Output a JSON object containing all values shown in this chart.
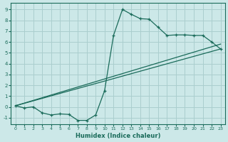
{
  "xlabel": "Humidex (Indice chaleur)",
  "bg_color": "#cce8e8",
  "grid_color": "#aacece",
  "line_color": "#1a6b5a",
  "xlim": [
    -0.5,
    23.5
  ],
  "ylim": [
    -1.6,
    9.6
  ],
  "xticks": [
    0,
    1,
    2,
    3,
    4,
    5,
    6,
    7,
    8,
    9,
    10,
    11,
    12,
    13,
    14,
    15,
    16,
    17,
    18,
    19,
    20,
    21,
    22,
    23
  ],
  "yticks": [
    -1,
    0,
    1,
    2,
    3,
    4,
    5,
    6,
    7,
    8,
    9
  ],
  "line1_x": [
    0,
    1,
    2,
    3,
    4,
    5,
    6,
    7,
    8,
    9,
    10,
    11,
    12,
    13,
    14,
    15,
    16,
    17,
    18,
    19,
    20,
    21,
    22,
    23
  ],
  "line1_y": [
    0.1,
    -0.1,
    0.0,
    -0.55,
    -0.75,
    -0.65,
    -0.7,
    -1.25,
    -1.25,
    -0.75,
    1.5,
    6.6,
    9.0,
    8.55,
    8.15,
    8.1,
    7.35,
    6.6,
    6.65,
    6.65,
    6.6,
    6.6,
    6.0,
    5.35
  ],
  "line2_x": [
    0,
    23
  ],
  "line2_y": [
    0.1,
    5.35
  ],
  "line3_x": [
    0,
    23
  ],
  "line3_y": [
    0.1,
    5.8
  ]
}
